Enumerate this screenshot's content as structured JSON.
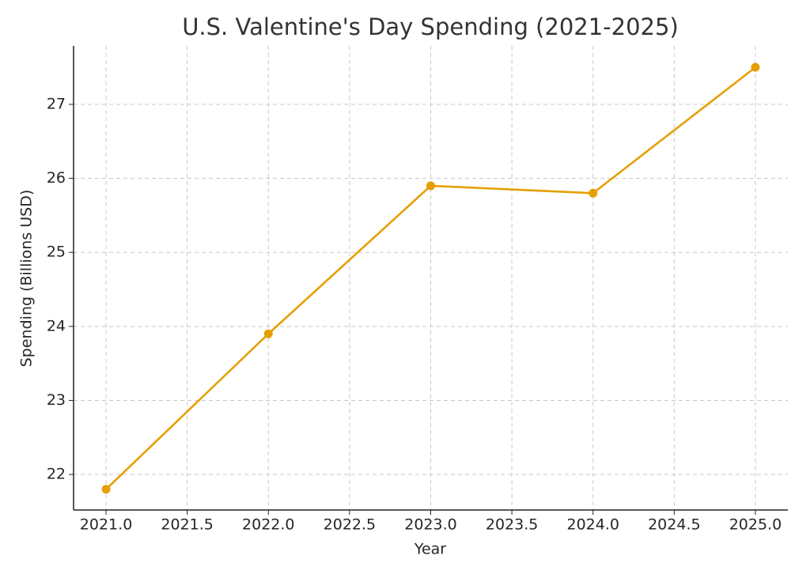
{
  "chart_data": {
    "type": "line",
    "title": "U.S. Valentine's Day Spending (2021-2025)",
    "x_label": "Year",
    "y_label": "Spending (Billions USD)",
    "x": [
      2021,
      2022,
      2023,
      2024,
      2025
    ],
    "series": [
      {
        "name": "Spending",
        "color": "#e69f00",
        "values": [
          21.8,
          23.9,
          25.9,
          25.8,
          27.5
        ]
      }
    ],
    "xlim": [
      2020.8,
      2025.2
    ],
    "xticks": [
      {
        "value": 2021,
        "label": "2021.0"
      },
      {
        "value": 2021.5,
        "label": "2021.5"
      },
      {
        "value": 2022,
        "label": "2022.0"
      },
      {
        "value": 2022.5,
        "label": "2022.5"
      },
      {
        "value": 2023,
        "label": "2023.0"
      },
      {
        "value": 2023.5,
        "label": "2023.5"
      },
      {
        "value": 2024,
        "label": "2024.0"
      },
      {
        "value": 2024.5,
        "label": "2024.5"
      },
      {
        "value": 2025,
        "label": "2025.0"
      }
    ],
    "ylim": [
      21.52,
      27.79
    ],
    "yticks": [
      22,
      23,
      24,
      25,
      26,
      27
    ],
    "grid": true
  }
}
